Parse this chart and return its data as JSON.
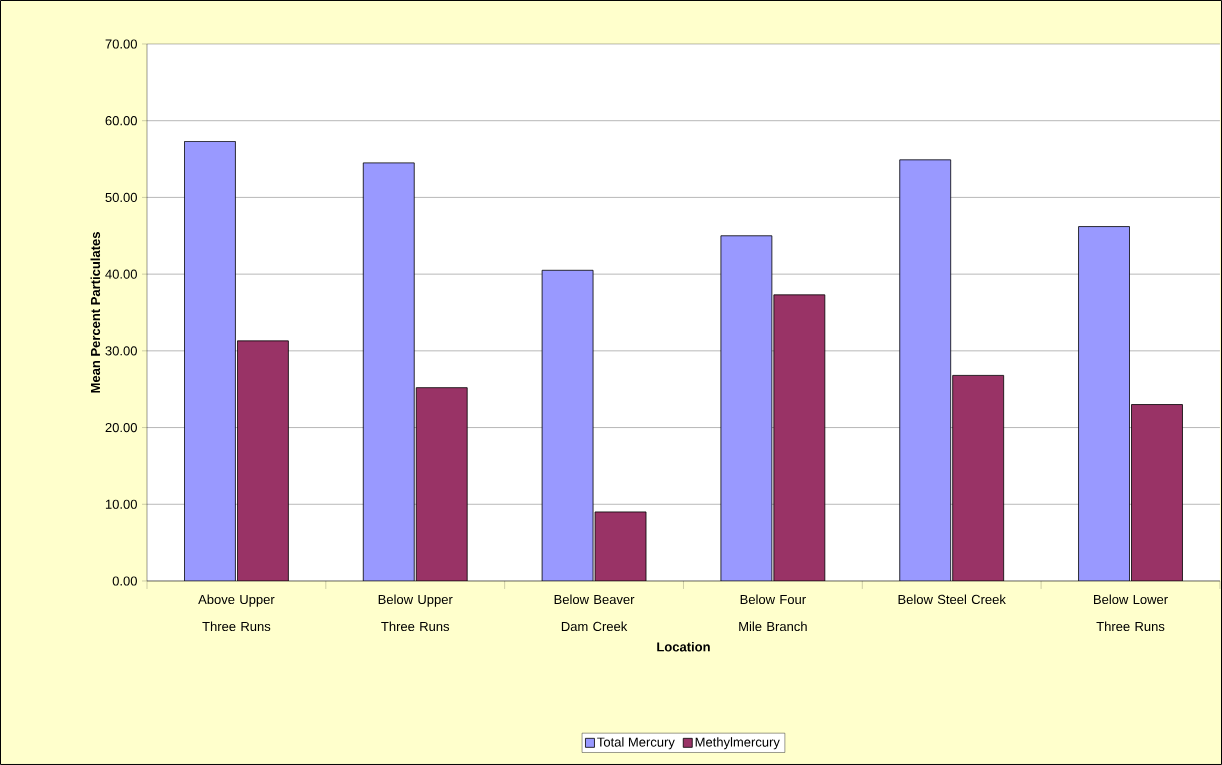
{
  "chart_data": {
    "type": "bar",
    "xlabel": "Location",
    "ylabel": "Mean Percent Particulates",
    "categories": [
      "Above Upper Three Runs",
      "Below Upper Three Runs",
      "Below Beaver Dam Creek",
      "Below Four Mile Branch",
      "Below Steel Creek",
      "Below Lower Three Runs"
    ],
    "series": [
      {
        "name": "Total Mercury",
        "color": "#9999ff",
        "values": [
          57.3,
          54.5,
          40.5,
          45.0,
          54.9,
          46.2
        ]
      },
      {
        "name": "Methylmercury",
        "color": "#993366",
        "values": [
          31.3,
          25.2,
          9.0,
          37.3,
          26.8,
          23.0
        ]
      }
    ],
    "ylim": [
      0,
      70
    ],
    "yticks": [
      {
        "value": 0,
        "label": "0.00"
      },
      {
        "value": 10,
        "label": "10.00"
      },
      {
        "value": 20,
        "label": "20.00"
      },
      {
        "value": 30,
        "label": "30.00"
      },
      {
        "value": 40,
        "label": "40.00"
      },
      {
        "value": 50,
        "label": "50.00"
      },
      {
        "value": 60,
        "label": "60.00"
      },
      {
        "value": 70,
        "label": "70.00"
      }
    ],
    "grid": "y",
    "legend": "bottom"
  }
}
